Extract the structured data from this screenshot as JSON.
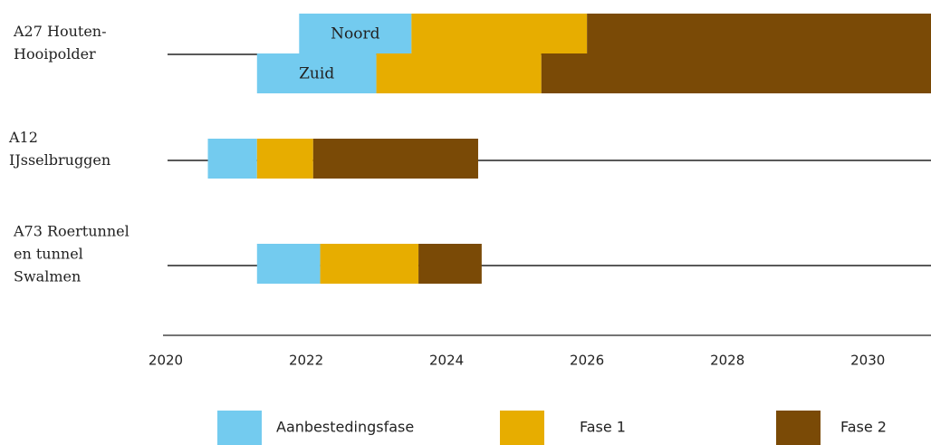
{
  "chart_data": {
    "type": "gantt",
    "xlim": [
      2020,
      2030.9
    ],
    "xticks": [
      2020,
      2022,
      2024,
      2026,
      2028,
      2030
    ],
    "series": [
      {
        "name": "Aanbestedingsfase",
        "color": "#73cbef"
      },
      {
        "name": "Fase 1",
        "color": "#e7ad00"
      },
      {
        "name": "Fase 2",
        "color": "#7a4a06"
      }
    ],
    "rows": [
      {
        "label": [
          "A27 Houten-",
          "Hooipolder"
        ],
        "bars": [
          {
            "name": "Noord",
            "segments": [
              {
                "start": 2021.9,
                "end": 2023.5
              },
              {
                "start": 2023.5,
                "end": 2026.0
              },
              {
                "start": 2026.0,
                "end": 2030.9
              }
            ]
          },
          {
            "name": "Zuid",
            "segments": [
              {
                "start": 2021.3,
                "end": 2023.0
              },
              {
                "start": 2023.0,
                "end": 2025.35
              },
              {
                "start": 2025.35,
                "end": 2030.9
              }
            ]
          }
        ]
      },
      {
        "label": [
          "A12",
          "IJsselbruggen"
        ],
        "bars": [
          {
            "segments": [
              {
                "start": 2020.6,
                "end": 2021.3
              },
              {
                "start": 2021.3,
                "end": 2022.1
              },
              {
                "start": 2022.1,
                "end": 2024.45
              }
            ]
          }
        ]
      },
      {
        "label": [
          "A73 Roertunnel",
          "en tunnel",
          "Swalmen"
        ],
        "bars": [
          {
            "segments": [
              {
                "start": 2021.3,
                "end": 2022.2
              },
              {
                "start": 2022.2,
                "end": 2023.6
              },
              {
                "start": 2023.6,
                "end": 2024.5
              }
            ]
          }
        ]
      }
    ]
  }
}
